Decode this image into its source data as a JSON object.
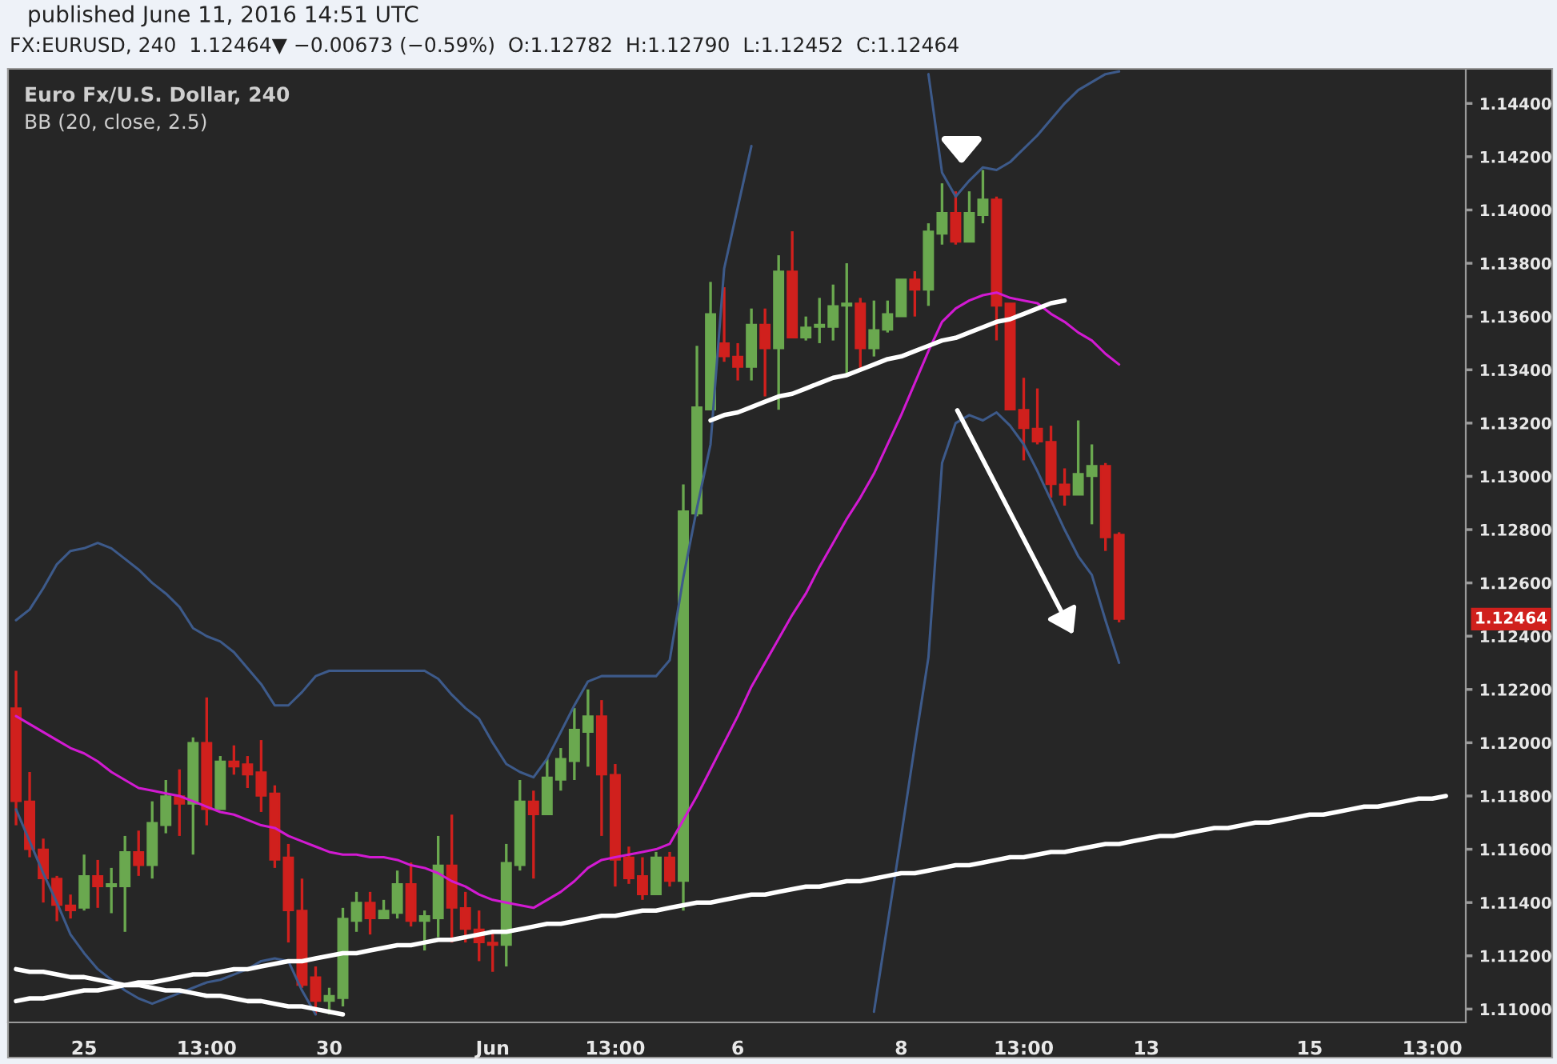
{
  "chart_data": {
    "type": "candlestick",
    "title": "published June 11, 2016 14:51 UTC",
    "subtitle": "FX:EURUSD, 240  1.12464▼ −0.00673 (−0.59%)  O:1.12782  H:1.12790  L:1.12452  C:1.12464",
    "annotations": [
      "Euro Fx/U.S. Dollar, 240",
      "BB (20, close, 2.5)",
      "1.12464"
    ],
    "categories": [
      null,
      null,
      null,
      null,
      null,
      "25",
      null,
      null,
      null,
      null,
      null,
      null,
      null,
      null,
      "13:00",
      null,
      null,
      null,
      null,
      null,
      null,
      null,
      null,
      "30",
      null,
      null,
      null,
      null,
      null,
      null,
      null,
      null,
      null,
      null,
      null,
      "Jun",
      null,
      null,
      null,
      null,
      null,
      null,
      null,
      null,
      "13:00",
      null,
      null,
      null,
      null,
      null,
      null,
      null,
      null,
      "6",
      null,
      null,
      null,
      null,
      null,
      null,
      null,
      null,
      null,
      null,
      null,
      "8",
      null,
      null,
      null,
      null,
      null,
      null,
      null,
      null,
      "13:00",
      null,
      null,
      null,
      null,
      null,
      null,
      null,
      null,
      "13",
      null,
      null,
      null,
      null,
      null,
      null,
      null,
      null,
      null,
      null,
      null,
      "15",
      null,
      null,
      null,
      null,
      null,
      null,
      null,
      null,
      "13:00",
      null,
      null
    ],
    "ohlc": [
      [
        1.1213,
        1.1227,
        1.1169,
        1.1178
      ],
      [
        1.1178,
        1.1189,
        1.1157,
        1.116
      ],
      [
        1.116,
        1.1164,
        1.114,
        1.1149
      ],
      [
        1.1149,
        1.115,
        1.1133,
        1.1139
      ],
      [
        1.1139,
        1.1143,
        1.1134,
        1.1137
      ],
      [
        1.1138,
        1.1158,
        1.1137,
        1.115
      ],
      [
        1.115,
        1.1156,
        1.1138,
        1.1146
      ],
      [
        1.1146,
        1.1153,
        1.1136,
        1.1147
      ],
      [
        1.1146,
        1.1165,
        1.1129,
        1.1159
      ],
      [
        1.1159,
        1.1167,
        1.115,
        1.1154
      ],
      [
        1.1154,
        1.1178,
        1.1149,
        1.117
      ],
      [
        1.1169,
        1.1186,
        1.1166,
        1.118
      ],
      [
        1.118,
        1.119,
        1.1165,
        1.1177
      ],
      [
        1.1177,
        1.1202,
        1.1158,
        1.12
      ],
      [
        1.12,
        1.1217,
        1.1169,
        1.1175
      ],
      [
        1.1175,
        1.1195,
        1.1175,
        1.1193
      ],
      [
        1.1193,
        1.1199,
        1.1188,
        1.1191
      ],
      [
        1.1192,
        1.1195,
        1.1183,
        1.1188
      ],
      [
        1.1189,
        1.1201,
        1.1174,
        1.118
      ],
      [
        1.1181,
        1.1184,
        1.1153,
        1.1156
      ],
      [
        1.1157,
        1.1162,
        1.1125,
        1.1137
      ],
      [
        1.1137,
        1.1149,
        1.1108,
        1.1109
      ],
      [
        1.1112,
        1.1116,
        1.1098,
        1.1103
      ],
      [
        1.1103,
        1.1108,
        1.1098,
        1.1105
      ],
      [
        1.1104,
        1.1138,
        1.1101,
        1.1134
      ],
      [
        1.1133,
        1.1144,
        1.1129,
        1.114
      ],
      [
        1.114,
        1.1144,
        1.1128,
        1.1134
      ],
      [
        1.1134,
        1.1141,
        1.1134,
        1.1137
      ],
      [
        1.1136,
        1.1152,
        1.1134,
        1.1147
      ],
      [
        1.1147,
        1.1155,
        1.1131,
        1.1133
      ],
      [
        1.1133,
        1.1137,
        1.1122,
        1.1135
      ],
      [
        1.1134,
        1.1165,
        1.1127,
        1.1154
      ],
      [
        1.1154,
        1.1173,
        1.1125,
        1.1138
      ],
      [
        1.1138,
        1.1144,
        1.1125,
        1.113
      ],
      [
        1.113,
        1.1137,
        1.1118,
        1.1125
      ],
      [
        1.1125,
        1.1129,
        1.1114,
        1.1124
      ],
      [
        1.1124,
        1.1162,
        1.1116,
        1.1155
      ],
      [
        1.1154,
        1.1186,
        1.1152,
        1.1178
      ],
      [
        1.1178,
        1.1182,
        1.1149,
        1.1173
      ],
      [
        1.1173,
        1.1194,
        1.1173,
        1.1187
      ],
      [
        1.1186,
        1.1198,
        1.1182,
        1.1194
      ],
      [
        1.1193,
        1.1213,
        1.1186,
        1.1205
      ],
      [
        1.1204,
        1.122,
        1.1191,
        1.121
      ],
      [
        1.121,
        1.1216,
        1.1165,
        1.1188
      ],
      [
        1.1188,
        1.1192,
        1.1146,
        1.1156
      ],
      [
        1.1157,
        1.1161,
        1.1147,
        1.1149
      ],
      [
        1.115,
        1.1157,
        1.1141,
        1.1143
      ],
      [
        1.1143,
        1.1159,
        1.1143,
        1.1157
      ],
      [
        1.1157,
        1.1159,
        1.1146,
        1.1148
      ],
      [
        1.1148,
        1.1297,
        1.1137,
        1.1287
      ],
      [
        1.1286,
        1.1349,
        1.1285,
        1.1326
      ],
      [
        1.1325,
        1.1373,
        1.1325,
        1.1361
      ],
      [
        1.135,
        1.1371,
        1.1343,
        1.1345
      ],
      [
        1.1345,
        1.135,
        1.1336,
        1.1341
      ],
      [
        1.1341,
        1.1363,
        1.1336,
        1.1357
      ],
      [
        1.1357,
        1.1363,
        1.133,
        1.1348
      ],
      [
        1.1348,
        1.1383,
        1.1325,
        1.1377
      ],
      [
        1.1377,
        1.1392,
        1.1352,
        1.1352
      ],
      [
        1.1352,
        1.136,
        1.1351,
        1.1356
      ],
      [
        1.1356,
        1.1367,
        1.135,
        1.1357
      ],
      [
        1.1356,
        1.1372,
        1.1351,
        1.1364
      ],
      [
        1.1364,
        1.138,
        1.1338,
        1.1365
      ],
      [
        1.1365,
        1.1367,
        1.134,
        1.1348
      ],
      [
        1.1348,
        1.1366,
        1.1345,
        1.1355
      ],
      [
        1.1355,
        1.1366,
        1.1354,
        1.1361
      ],
      [
        1.136,
        1.1374,
        1.136,
        1.1374
      ],
      [
        1.1374,
        1.1377,
        1.136,
        1.137
      ],
      [
        1.137,
        1.1395,
        1.1364,
        1.1392
      ],
      [
        1.1391,
        1.141,
        1.1387,
        1.1399
      ],
      [
        1.1399,
        1.1407,
        1.1387,
        1.1388
      ],
      [
        1.1388,
        1.1407,
        1.1388,
        1.1399
      ],
      [
        1.1398,
        1.1415,
        1.1395,
        1.1404
      ],
      [
        1.1404,
        1.1405,
        1.1351,
        1.1364
      ],
      [
        1.1365,
        1.1365,
        1.1325,
        1.1325
      ],
      [
        1.1325,
        1.1337,
        1.1306,
        1.1318
      ],
      [
        1.1318,
        1.1333,
        1.1312,
        1.1313
      ],
      [
        1.1313,
        1.1319,
        1.1292,
        1.1297
      ],
      [
        1.1297,
        1.1303,
        1.1289,
        1.1293
      ],
      [
        1.1293,
        1.1321,
        1.1293,
        1.1301
      ],
      [
        1.13,
        1.1312,
        1.1282,
        1.1304
      ],
      [
        1.1304,
        1.1305,
        1.1272,
        1.1277
      ],
      [
        1.12782,
        1.1279,
        1.12452,
        1.12464
      ],
      null,
      null,
      null,
      null,
      null,
      null,
      null,
      null,
      null,
      null,
      null,
      null,
      null,
      null,
      null,
      null,
      null,
      null,
      null,
      null,
      null,
      null,
      null,
      null,
      null
    ],
    "colors": [
      "#d0201d",
      "#d0201d",
      "#d0201d",
      "#d0201d",
      "#d0201d",
      "#6aa84f",
      "#d0201d",
      "#6aa84f",
      "#6aa84f",
      "#d0201d",
      "#6aa84f",
      "#6aa84f",
      "#d0201d",
      "#6aa84f",
      "#d0201d",
      "#6aa84f",
      "#d0201d",
      "#d0201d",
      "#d0201d",
      "#d0201d",
      "#d0201d",
      "#d0201d",
      "#d0201d",
      "#6aa84f",
      "#6aa84f",
      "#6aa84f",
      "#d0201d",
      "#6aa84f",
      "#6aa84f",
      "#d0201d",
      "#6aa84f",
      "#6aa84f",
      "#d0201d",
      "#d0201d",
      "#d0201d",
      "#d0201d",
      "#6aa84f",
      "#6aa84f",
      "#d0201d",
      "#6aa84f",
      "#6aa84f",
      "#6aa84f",
      "#6aa84f",
      "#d0201d",
      "#d0201d",
      "#d0201d",
      "#d0201d",
      "#6aa84f",
      "#d0201d",
      "#6aa84f",
      "#6aa84f",
      "#6aa84f",
      "#d0201d",
      "#d0201d",
      "#6aa84f",
      "#d0201d",
      "#6aa84f",
      "#d0201d",
      "#6aa84f",
      "#6aa84f",
      "#6aa84f",
      "#6aa84f",
      "#d0201d",
      "#6aa84f",
      "#6aa84f",
      "#6aa84f",
      "#d0201d",
      "#6aa84f",
      "#6aa84f",
      "#d0201d",
      "#6aa84f",
      "#6aa84f",
      "#d0201d",
      "#d0201d",
      "#d0201d",
      "#d0201d",
      "#d0201d",
      "#d0201d",
      "#6aa84f",
      "#6aa84f",
      "#d0201d",
      "#d0201d",
      null,
      null,
      null,
      null,
      null,
      null,
      null,
      null,
      null,
      null,
      null,
      null,
      null,
      null,
      null,
      null,
      null,
      null,
      null,
      null,
      null,
      null,
      null,
      null,
      null
    ],
    "series": [
      {
        "type": "line",
        "color": "#3d5a8a",
        "values": [
          1.1246,
          1.125,
          1.1258,
          1.1267,
          1.1272,
          1.1273,
          1.1275,
          1.1273,
          1.1269,
          1.1265,
          1.126,
          1.1256,
          1.1251,
          1.1243,
          1.124,
          1.1238,
          1.1234,
          1.1228,
          1.1222,
          1.1214,
          1.1214,
          1.1219,
          1.1225,
          1.1227,
          1.1227,
          1.1227,
          1.1227,
          1.1227,
          1.1227,
          1.1227,
          1.1227,
          1.1224,
          1.1218,
          1.1213,
          1.1209,
          1.12,
          1.1192,
          1.1189,
          1.1187,
          1.1194,
          1.1204,
          1.1214,
          1.1223,
          1.1225,
          1.1225,
          1.1225,
          1.1225,
          1.1225,
          1.1231,
          1.1262,
          1.1288,
          1.1312,
          1.1378,
          1.1401,
          1.1424,
          null,
          null,
          null,
          null,
          null,
          null,
          null,
          null,
          null,
          null,
          null,
          null,
          1.1451,
          1.1414,
          1.1405,
          1.1411,
          1.1416,
          1.1415,
          1.1418,
          1.1423,
          1.1428,
          1.1434,
          1.144,
          1.1445,
          1.1448,
          1.1451,
          1.1452,
          null,
          null,
          null,
          null,
          null,
          null,
          null,
          null,
          null,
          null,
          null,
          null,
          null,
          null,
          null,
          null,
          null,
          null,
          null,
          null,
          null,
          null,
          null,
          null,
          null
        ]
      },
      {
        "type": "line",
        "color": "#3d5a8a",
        "values": [
          1.1175,
          1.1163,
          1.1151,
          1.114,
          1.1128,
          1.1121,
          1.1115,
          1.1111,
          1.1107,
          1.1104,
          1.1102,
          1.1104,
          1.1106,
          1.1108,
          1.111,
          1.1111,
          1.1113,
          1.1115,
          1.1118,
          1.1119,
          1.1118,
          1.1107,
          1.1098,
          null,
          null,
          null,
          null,
          null,
          null,
          null,
          null,
          null,
          null,
          null,
          null,
          null,
          null,
          null,
          null,
          null,
          null,
          null,
          null,
          null,
          null,
          null,
          null,
          null,
          null,
          null,
          null,
          null,
          null,
          null,
          null,
          null,
          null,
          null,
          null,
          null,
          null,
          null,
          null,
          1.1099,
          1.1132,
          1.1165,
          1.1199,
          1.1232,
          1.1305,
          1.132,
          1.1323,
          1.1321,
          1.1324,
          1.1319,
          1.1312,
          1.1302,
          1.1291,
          1.128,
          1.127,
          1.1263,
          1.1246,
          1.123,
          null,
          null,
          null,
          null,
          null,
          null,
          null,
          null,
          null,
          null,
          null,
          null,
          null,
          null,
          null,
          null,
          null,
          null,
          null,
          null,
          null,
          null,
          null,
          null,
          null
        ]
      },
      {
        "type": "line",
        "color": "#d21ad2",
        "values": [
          1.121,
          1.1207,
          1.1204,
          1.1201,
          1.1198,
          1.1196,
          1.1193,
          1.1189,
          1.1186,
          1.1183,
          1.1182,
          1.1181,
          1.118,
          1.1178,
          1.1176,
          1.1174,
          1.1173,
          1.1171,
          1.1169,
          1.1168,
          1.1165,
          1.1163,
          1.1161,
          1.1159,
          1.1158,
          1.1158,
          1.1157,
          1.1157,
          1.1156,
          1.1154,
          1.1153,
          1.1151,
          1.1148,
          1.1146,
          1.1143,
          1.1141,
          1.114,
          1.1139,
          1.1138,
          1.1141,
          1.1144,
          1.1148,
          1.1153,
          1.1156,
          1.1157,
          1.1158,
          1.1159,
          1.116,
          1.1162,
          1.1171,
          1.118,
          1.119,
          1.12,
          1.121,
          1.1221,
          1.123,
          1.1239,
          1.1248,
          1.1256,
          1.1266,
          1.1275,
          1.1284,
          1.1292,
          1.1301,
          1.1312,
          1.1323,
          1.1335,
          1.1347,
          1.1358,
          1.1363,
          1.1366,
          1.1368,
          1.1369,
          1.1367,
          1.1366,
          1.1365,
          1.1361,
          1.1358,
          1.1354,
          1.1351,
          1.1346,
          1.1342,
          null,
          null,
          null,
          null,
          null,
          null,
          null,
          null,
          null,
          null,
          null,
          null,
          null,
          null,
          null,
          null,
          null,
          null,
          null,
          null,
          null,
          null,
          null,
          null,
          null
        ]
      },
      {
        "type": "line",
        "color": "#ffffff",
        "values": [
          1.1103,
          1.1104,
          1.1104,
          1.1105,
          1.1106,
          1.1107,
          1.1107,
          1.1108,
          1.1109,
          1.111,
          1.111,
          1.1111,
          1.1112,
          1.1113,
          1.1113,
          1.1114,
          1.1115,
          1.1115,
          1.1116,
          1.1117,
          1.1118,
          1.1118,
          1.1119,
          1.112,
          1.1121,
          1.1121,
          1.1122,
          1.1123,
          1.1124,
          1.1124,
          1.1125,
          1.1126,
          1.1126,
          1.1127,
          1.1128,
          1.1129,
          1.1129,
          1.113,
          1.1131,
          1.1132,
          1.1132,
          1.1133,
          1.1134,
          1.1135,
          1.1135,
          1.1136,
          1.1137,
          1.1137,
          1.1138,
          1.1139,
          1.114,
          1.114,
          1.1141,
          1.1142,
          1.1143,
          1.1143,
          1.1144,
          1.1145,
          1.1146,
          1.1146,
          1.1147,
          1.1148,
          1.1148,
          1.1149,
          1.115,
          1.1151,
          1.1151,
          1.1152,
          1.1153,
          1.1154,
          1.1154,
          1.1155,
          1.1156,
          1.1157,
          1.1157,
          1.1158,
          1.1159,
          1.1159,
          1.116,
          1.1161,
          1.1162,
          1.1162,
          1.1163,
          1.1164,
          1.1165,
          1.1165,
          1.1166,
          1.1167,
          1.1168,
          1.1168,
          1.1169,
          1.117,
          1.117,
          1.1171,
          1.1172,
          1.1173,
          1.1173,
          1.1174,
          1.1175,
          1.1176,
          1.1176,
          1.1177,
          1.1178,
          1.1179,
          1.1179,
          1.118,
          null
        ]
      },
      {
        "type": "line",
        "color": "#ffffff",
        "values": [
          1.1115,
          1.1114,
          1.1114,
          1.1113,
          1.1112,
          1.1112,
          1.1111,
          1.111,
          1.1109,
          1.1109,
          1.1108,
          1.1107,
          1.1107,
          1.1106,
          1.1105,
          1.1105,
          1.1104,
          1.1103,
          1.1103,
          1.1102,
          1.1101,
          1.1101,
          1.11,
          1.1099,
          1.1098,
          null,
          null,
          null,
          null,
          null,
          null,
          null,
          null,
          null,
          null,
          null,
          null,
          null,
          null,
          null,
          null,
          null,
          null,
          null,
          null,
          null,
          null,
          null,
          null,
          null,
          null,
          null,
          null,
          null,
          null,
          null,
          null,
          null,
          null,
          null,
          null,
          null,
          null,
          null,
          null,
          null,
          null,
          null,
          null,
          null,
          null,
          null,
          null,
          null,
          null,
          null,
          null,
          null,
          null,
          null,
          null,
          null,
          null,
          null,
          null,
          null,
          null,
          null,
          null,
          null,
          null,
          null,
          null,
          null,
          null,
          null,
          null,
          null,
          null,
          null,
          null,
          null,
          null,
          null,
          null,
          null,
          null
        ]
      },
      {
        "type": "line",
        "color": "#ffffff",
        "values": [
          null,
          null,
          null,
          null,
          null,
          null,
          null,
          null,
          null,
          null,
          null,
          null,
          null,
          null,
          null,
          null,
          null,
          null,
          null,
          null,
          null,
          null,
          null,
          null,
          null,
          null,
          null,
          null,
          null,
          null,
          null,
          null,
          null,
          null,
          null,
          null,
          null,
          null,
          null,
          null,
          null,
          null,
          null,
          null,
          null,
          null,
          null,
          null,
          null,
          null,
          null,
          1.1321,
          1.1323,
          1.1324,
          1.1326,
          1.1328,
          1.133,
          1.1331,
          1.1333,
          1.1335,
          1.1337,
          1.1338,
          1.134,
          1.1342,
          1.1344,
          1.1345,
          1.1347,
          1.1349,
          1.1351,
          1.1352,
          1.1354,
          1.1356,
          1.1358,
          1.1359,
          1.1361,
          1.1363,
          1.1365,
          1.1366,
          null,
          null,
          null,
          null,
          null,
          null,
          null,
          null,
          null,
          null,
          null,
          null,
          null,
          null,
          null,
          null,
          null,
          null,
          null,
          null,
          null,
          null,
          null,
          null,
          null,
          null,
          null,
          null,
          null
        ]
      }
    ],
    "ylim": [
      1.1095,
      1.1453
    ],
    "yticks": [
      {
        "value": 1.11,
        "label": "1.11000"
      },
      {
        "value": 1.112,
        "label": "1.11200"
      },
      {
        "value": 1.114,
        "label": "1.11400"
      },
      {
        "value": 1.116,
        "label": "1.11600"
      },
      {
        "value": 1.118,
        "label": "1.11800"
      },
      {
        "value": 1.12,
        "label": "1.12000"
      },
      {
        "value": 1.122,
        "label": "1.12200"
      },
      {
        "value": 1.124,
        "label": "1.12400"
      },
      {
        "value": 1.126,
        "label": "1.12600"
      },
      {
        "value": 1.128,
        "label": "1.12800"
      },
      {
        "value": 1.13,
        "label": "1.13000"
      },
      {
        "value": 1.132,
        "label": "1.13200"
      },
      {
        "value": 1.134,
        "label": "1.13400"
      },
      {
        "value": 1.136,
        "label": "1.13600"
      },
      {
        "value": 1.138,
        "label": "1.13800"
      },
      {
        "value": 1.14,
        "label": "1.14000"
      },
      {
        "value": 1.142,
        "label": "1.14200"
      },
      {
        "value": 1.144,
        "label": "1.14400"
      }
    ],
    "grid": false,
    "legend": false
  }
}
